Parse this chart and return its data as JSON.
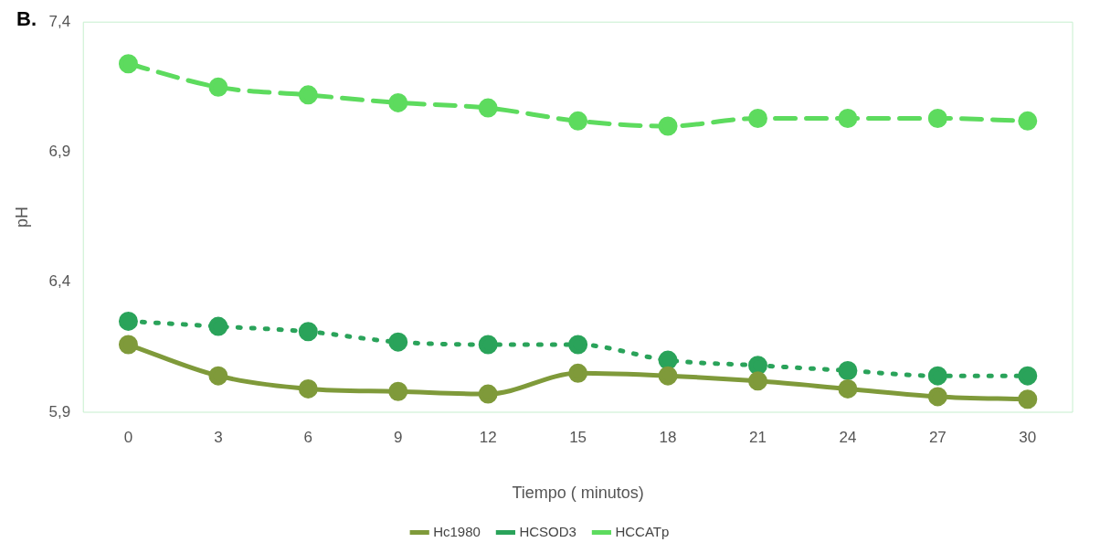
{
  "chart_data": {
    "type": "line",
    "xlabel": "Tiempo ( minutos)",
    "ylabel": "pH",
    "annotations": [
      "B."
    ],
    "categories": [
      "0",
      "3",
      "6",
      "9",
      "12",
      "15",
      "18",
      "21",
      "24",
      "27",
      "30"
    ],
    "ylim": [
      5.9,
      7.4
    ],
    "yticks": [
      {
        "value": 5.9,
        "label": "5,9"
      },
      {
        "value": 6.4,
        "label": "6,4"
      },
      {
        "value": 6.9,
        "label": "6,9"
      },
      {
        "value": 7.4,
        "label": "7,4"
      }
    ],
    "grid": false,
    "legend": "bottom",
    "marker": "circle",
    "series": [
      {
        "name": "Hc1980",
        "color": "#7f9a3a",
        "line_style": "solid",
        "values": [
          6.16,
          6.04,
          5.99,
          5.98,
          5.97,
          6.05,
          6.04,
          6.02,
          5.99,
          5.96,
          5.95
        ]
      },
      {
        "name": "HCSOD3",
        "color": "#2aa35a",
        "line_style": "dotted",
        "values": [
          6.25,
          6.23,
          6.21,
          6.17,
          6.16,
          6.16,
          6.1,
          6.08,
          6.06,
          6.04,
          6.04
        ]
      },
      {
        "name": "HCCATp",
        "color": "#5ddb5e",
        "line_style": "dashed",
        "values": [
          7.24,
          7.15,
          7.12,
          7.09,
          7.07,
          7.02,
          7.0,
          7.03,
          7.03,
          7.03,
          7.02
        ]
      }
    ]
  }
}
